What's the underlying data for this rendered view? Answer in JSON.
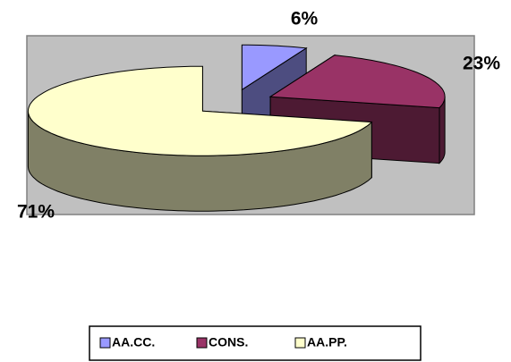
{
  "chart_data": {
    "type": "pie",
    "style": "3d-exploded",
    "categories": [
      "AA.CC.",
      "CONS.",
      "AA.PP."
    ],
    "values": [
      6,
      23,
      71
    ],
    "value_labels": [
      "6%",
      "23%",
      "71%"
    ],
    "colors": [
      "#9999ff",
      "#993366",
      "#ffffcc"
    ],
    "legend": "bottom"
  }
}
